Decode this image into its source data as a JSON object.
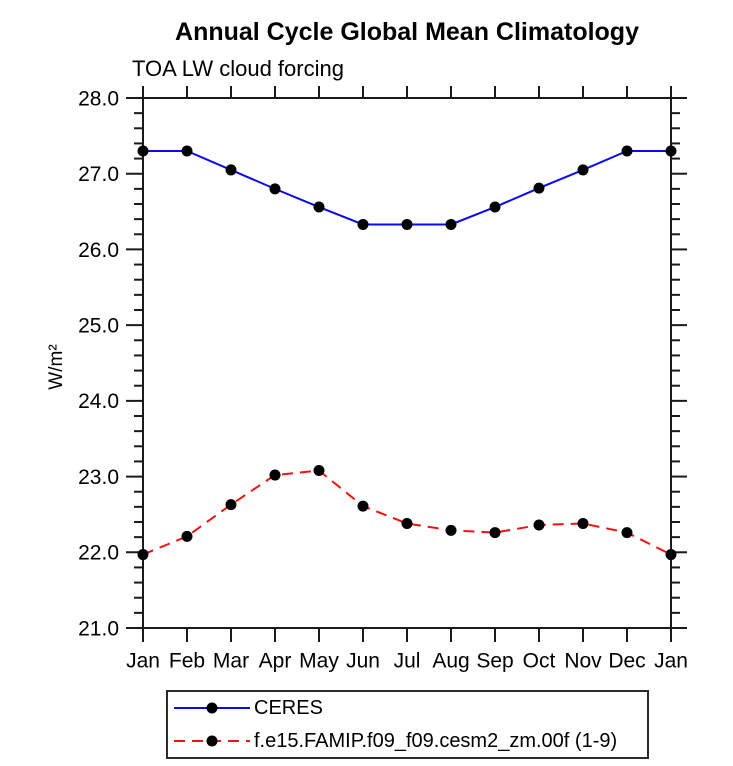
{
  "chart": {
    "title": "Annual Cycle Global Mean Climatology",
    "subtitle": "TOA LW cloud forcing"
  },
  "chart_data": {
    "type": "line",
    "categories": [
      "Jan",
      "Feb",
      "Mar",
      "Apr",
      "May",
      "Jun",
      "Jul",
      "Aug",
      "Sep",
      "Oct",
      "Nov",
      "Dec",
      "Jan"
    ],
    "series": [
      {
        "name": "CERES",
        "color": "#0a0aee",
        "line_style": "solid",
        "marker": "filled-circle",
        "values": [
          27.3,
          27.3,
          27.05,
          26.8,
          26.56,
          26.33,
          26.33,
          26.33,
          26.56,
          26.81,
          27.05,
          27.3,
          27.3
        ]
      },
      {
        "name": "f.e15.FAMIP.f09_f09.cesm2_zm.00f (1-9)",
        "color": "#f31111",
        "line_style": "dashed",
        "marker": "filled-circle",
        "values": [
          21.97,
          22.21,
          22.63,
          23.02,
          23.08,
          22.61,
          22.38,
          22.29,
          22.26,
          22.36,
          22.38,
          22.26,
          21.97
        ]
      }
    ],
    "xlabel": "",
    "ylabel": "W/m²",
    "ylim": [
      21.0,
      28.0
    ],
    "ytick_major": 1.0,
    "ytick_minor": 0.2,
    "ytick_labels": [
      "21.0",
      "22.0",
      "23.0",
      "24.0",
      "25.0",
      "26.0",
      "27.0",
      "28.0"
    ],
    "grid": false,
    "legend_position": "bottom",
    "marker_color": "#000000",
    "axis_color": "#1a1a1a"
  }
}
